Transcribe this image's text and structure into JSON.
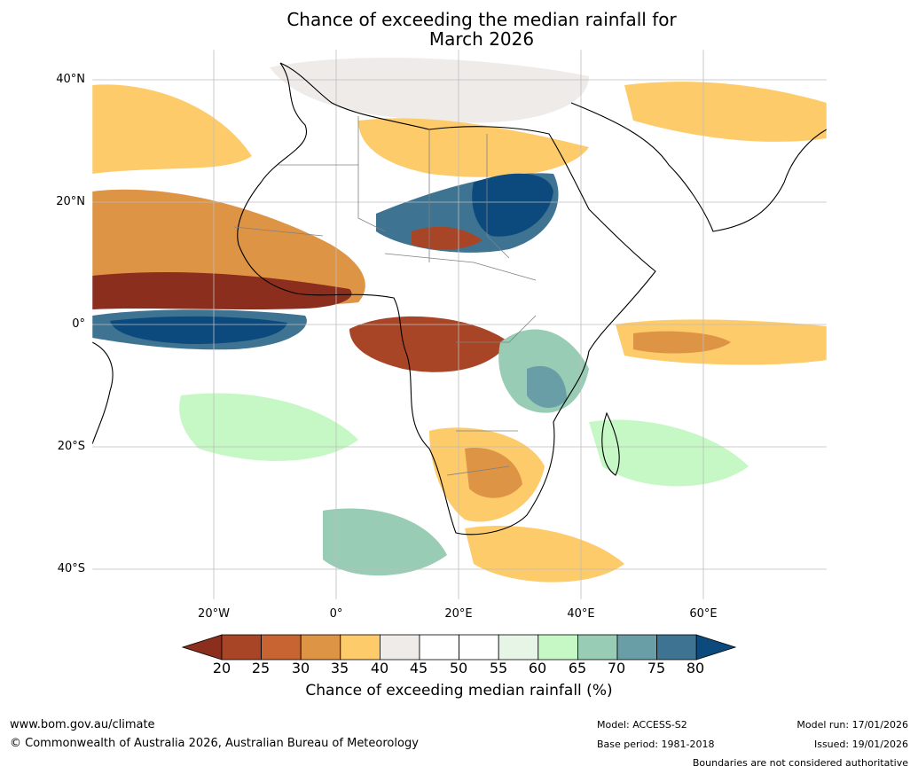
{
  "title_line1": "Chance of exceeding the median rainfall for",
  "title_line2": "March 2026",
  "lat_labels": [
    "40°N",
    "20°N",
    "0°",
    "20°S",
    "40°S"
  ],
  "lon_labels": [
    "20°W",
    "0°",
    "20°E",
    "40°E",
    "60°E"
  ],
  "colorbar": {
    "ticks": [
      "20",
      "25",
      "30",
      "35",
      "40",
      "45",
      "50",
      "55",
      "60",
      "65",
      "70",
      "75",
      "80"
    ],
    "colors": [
      "#8c2e1d",
      "#a94527",
      "#c76432",
      "#de9445",
      "#fecb6a",
      "#efebe8",
      "#ffffff",
      "#ffffff",
      "#e6f5e6",
      "#c6f8c6",
      "#98ccb5",
      "#6a9ea6",
      "#3e7392",
      "#0c4a7d"
    ],
    "label": "Chance of exceeding median rainfall (%)"
  },
  "footer": {
    "website": "www.bom.gov.au/climate",
    "copyright": "© Commonwealth of Australia 2026, Australian Bureau of Meteorology",
    "model": "Model: ACCESS-S2",
    "base_period": "Base period: 1981-2018",
    "model_run": "Model run: 17/01/2026",
    "issued": "Issued: 19/01/2026",
    "disclaimer": "Boundaries are not considered authoritative"
  }
}
